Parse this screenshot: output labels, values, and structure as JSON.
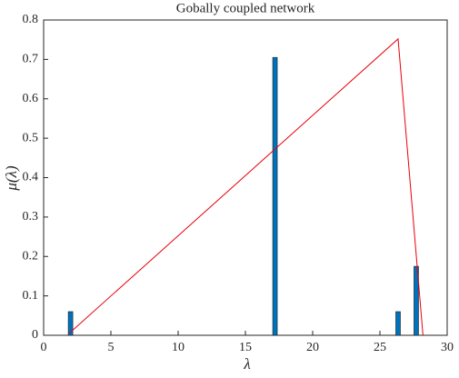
{
  "chart_data": {
    "type": "bar",
    "title": "Gobally coupled network",
    "xlabel": "λ",
    "ylabel": "μ(λ)",
    "x": [
      2.0,
      17.2,
      26.35,
      27.7
    ],
    "values": [
      0.06,
      0.705,
      0.06,
      0.175
    ],
    "color": "#0072bd",
    "line": {
      "color": "#e8000b",
      "x": [
        1.9,
        26.35,
        28.2
      ],
      "values": [
        0.005,
        0.752,
        0
      ]
    },
    "xlim": [
      0,
      30
    ],
    "xticks": [
      0,
      5,
      10,
      15,
      20,
      25,
      30
    ],
    "ylim": [
      0,
      0.8
    ],
    "yticks": [
      0,
      0.1,
      0.2,
      0.3,
      0.4,
      0.5,
      0.6,
      0.7,
      0.8
    ]
  }
}
